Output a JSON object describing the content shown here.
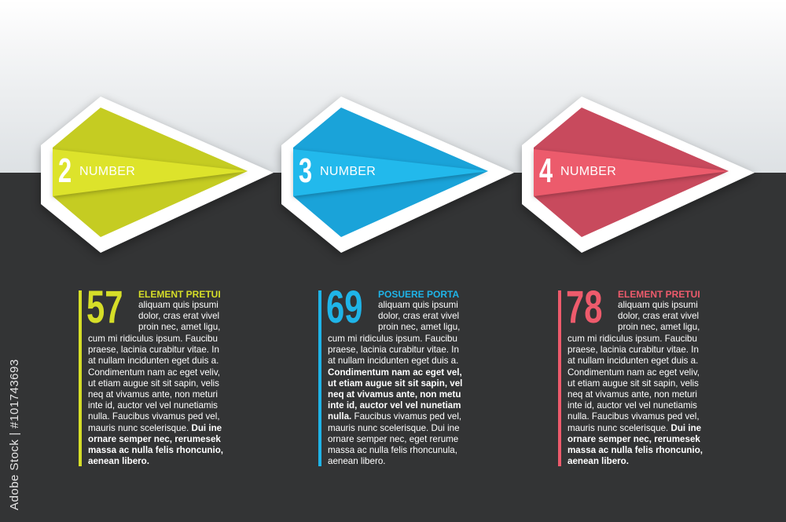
{
  "watermark": "Adobe Stock",
  "side_id": "Adobe Stock | #101743693",
  "badges": [
    {
      "number": "2",
      "label": "NUMBER",
      "color": "#c5cc22",
      "band": "#dde32b"
    },
    {
      "number": "3",
      "label": "NUMBER",
      "color": "#1aa3d9",
      "band": "#22b9ec"
    },
    {
      "number": "4",
      "label": "NUMBER",
      "color": "#c84a5d",
      "band": "#ec5b6c"
    }
  ],
  "columns": [
    {
      "value": "57",
      "title": "ELEMENT PRETUI",
      "color": "#d6de28",
      "side_lines": [
        "aliquam quis ipsumi",
        "dolor, cras erat vivel",
        "proin nec, amet ligu,"
      ],
      "body": [
        [
          [
            "cum mi ridiculus ipsum. Faucibu",
            false
          ]
        ],
        [
          [
            "praese, lacinia curabitur vitae. In",
            false
          ]
        ],
        [
          [
            "at nullam incidunten eget duis a.",
            false
          ]
        ],
        [
          [
            "Condimentum nam ac eget veliv,",
            false
          ]
        ],
        [
          [
            "ut etiam augue sit sit sapin, velis",
            false
          ]
        ],
        [
          [
            "neq at vivamus ante, non meturi",
            false
          ]
        ],
        [
          [
            "inte id, auctor vel vel nunetiamis",
            false
          ]
        ],
        [
          [
            "nulla. Faucibus vivamus ped vel,",
            false
          ]
        ],
        [
          [
            "mauris nunc scelerisque. ",
            false
          ],
          [
            "Dui ine",
            true
          ]
        ],
        [
          [
            "ornare semper nec, rerumesek",
            true
          ]
        ],
        [
          [
            "massa ac nulla felis rhoncunio,",
            true
          ]
        ],
        [
          [
            "aenean libero.",
            true
          ]
        ]
      ]
    },
    {
      "value": "69",
      "title": "POSUERE PORTA",
      "color": "#1fb4e8",
      "side_lines": [
        "aliquam quis ipsumi",
        "dolor, cras erat vivel",
        "proin nec, amet ligu,"
      ],
      "body": [
        [
          [
            "cum mi ridiculus ipsum. Faucibu",
            false
          ]
        ],
        [
          [
            "praese, lacinia curabitur vitae. In",
            false
          ]
        ],
        [
          [
            "at nullam incidunten eget duis a.",
            false
          ]
        ],
        [
          [
            "Condimentum nam ac eget vel,",
            true
          ]
        ],
        [
          [
            "ut etiam augue sit sit sapin, vel",
            true
          ]
        ],
        [
          [
            "neq at vivamus ante, non metu",
            true
          ]
        ],
        [
          [
            "inte id, auctor vel vel nunetiam",
            true
          ]
        ],
        [
          [
            "nulla.",
            true
          ],
          [
            " Faucibus vivamus ped vel,",
            false
          ]
        ],
        [
          [
            "mauris nunc scelerisque. Dui ine",
            false
          ]
        ],
        [
          [
            "ornare semper nec, eget rerume",
            false
          ]
        ],
        [
          [
            "massa ac nulla felis rhoncunula,",
            false
          ]
        ],
        [
          [
            "aenean libero.",
            false
          ]
        ]
      ]
    },
    {
      "value": "78",
      "title": "ELEMENT PRETUI",
      "color": "#ee5b6c",
      "side_lines": [
        "aliquam quis ipsumi",
        "dolor, cras erat vivel",
        "proin nec, amet ligu,"
      ],
      "body": [
        [
          [
            "cum mi ridiculus ipsum. Faucibu",
            false
          ]
        ],
        [
          [
            "praese, lacinia curabitur vitae. In",
            false
          ]
        ],
        [
          [
            "at nullam incidunten eget duis a.",
            false
          ]
        ],
        [
          [
            "Condimentum nam ac eget veliv,",
            false
          ]
        ],
        [
          [
            "ut etiam augue sit sit sapin, velis",
            false
          ]
        ],
        [
          [
            "neq at vivamus ante, non meturi",
            false
          ]
        ],
        [
          [
            "inte id, auctor vel vel nunetiamis",
            false
          ]
        ],
        [
          [
            "nulla. Faucibus vivamus ped vel,",
            false
          ]
        ],
        [
          [
            "mauris nunc scelerisque. ",
            false
          ],
          [
            "Dui ine",
            true
          ]
        ],
        [
          [
            "ornare semper nec, rerumesek",
            true
          ]
        ],
        [
          [
            "massa ac nulla felis rhoncunio,",
            true
          ]
        ],
        [
          [
            "aenean libero.",
            true
          ]
        ]
      ]
    }
  ]
}
